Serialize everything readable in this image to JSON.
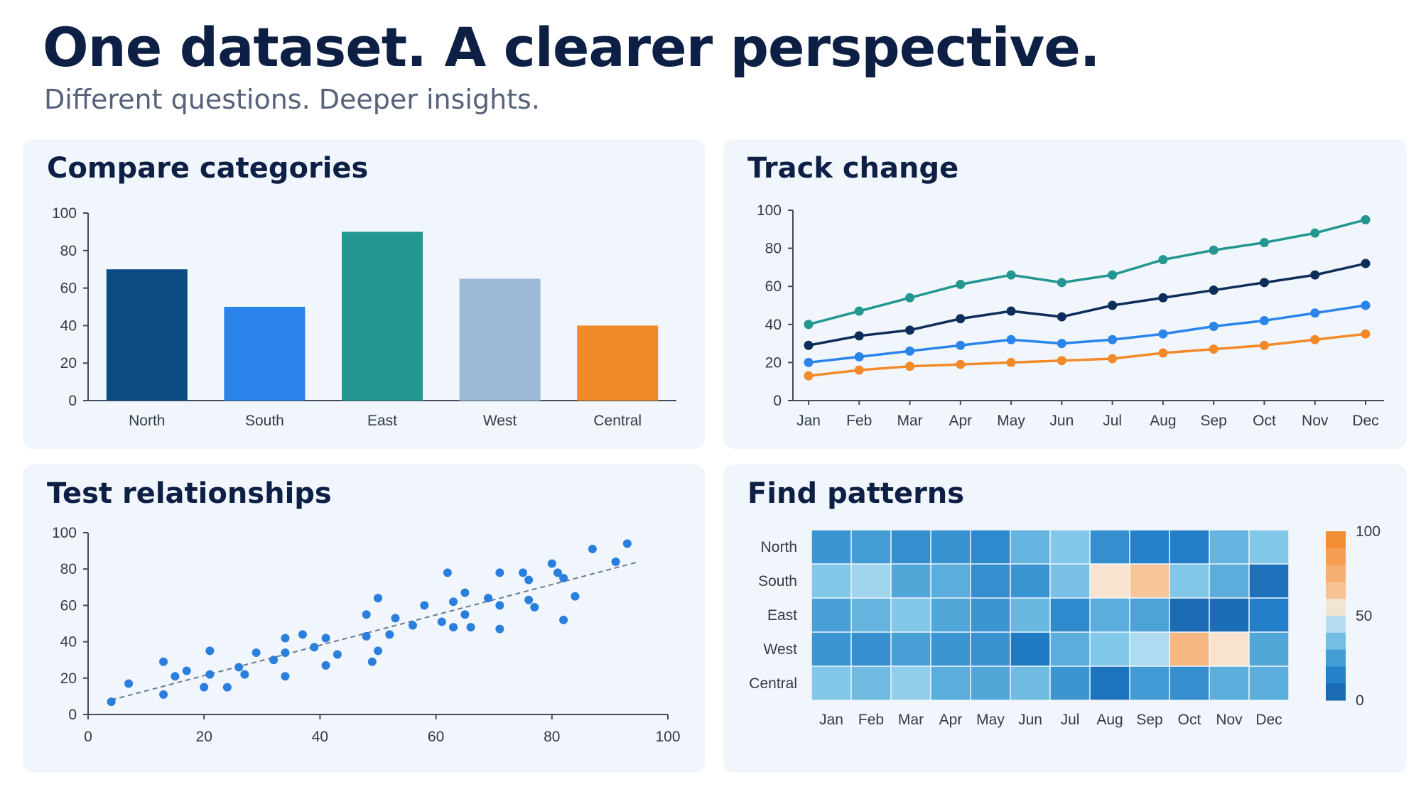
{
  "header": {
    "title": "One dataset. A clearer perspective.",
    "subtitle": "Different questions. Deeper insights."
  },
  "chart_data": [
    {
      "panel": "bar",
      "type": "bar",
      "title": "Compare categories",
      "categories": [
        "North",
        "South",
        "East",
        "West",
        "Central"
      ],
      "values": [
        70,
        50,
        90,
        65,
        40
      ],
      "colors": [
        "#0c4a83",
        "#2a84ea",
        "#22968f",
        "#9db9d8",
        "#f28a2a"
      ],
      "ylim": [
        0,
        100
      ],
      "yticks": [
        0,
        20,
        40,
        60,
        80,
        100
      ]
    },
    {
      "panel": "line",
      "type": "line",
      "title": "Track change",
      "categories": [
        "Jan",
        "Feb",
        "Mar",
        "Apr",
        "May",
        "Jun",
        "Jul",
        "Aug",
        "Sep",
        "Oct",
        "Nov",
        "Dec"
      ],
      "series": [
        {
          "color": "#22968f",
          "values": [
            40,
            47,
            54,
            61,
            66,
            62,
            66,
            74,
            79,
            83,
            88,
            95
          ]
        },
        {
          "color": "#0d2d5a",
          "values": [
            29,
            34,
            37,
            43,
            47,
            44,
            50,
            54,
            58,
            62,
            66,
            72
          ]
        },
        {
          "color": "#2a84ea",
          "values": [
            20,
            23,
            26,
            29,
            32,
            30,
            32,
            35,
            39,
            42,
            46,
            50
          ]
        },
        {
          "color": "#f28a2a",
          "values": [
            13,
            16,
            18,
            19,
            20,
            21,
            22,
            25,
            27,
            29,
            32,
            35
          ]
        }
      ],
      "ylim": [
        0,
        100
      ],
      "yticks": [
        0,
        20,
        40,
        60,
        80,
        100
      ]
    },
    {
      "panel": "scatter",
      "type": "scatter",
      "title": "Test relationships",
      "points": [
        [
          4,
          7
        ],
        [
          7,
          17
        ],
        [
          13,
          11
        ],
        [
          13,
          29
        ],
        [
          15,
          21
        ],
        [
          17,
          24
        ],
        [
          20,
          15
        ],
        [
          21,
          22
        ],
        [
          21,
          35
        ],
        [
          24,
          15
        ],
        [
          26,
          26
        ],
        [
          27,
          22
        ],
        [
          29,
          34
        ],
        [
          32,
          30
        ],
        [
          34,
          21
        ],
        [
          34,
          34
        ],
        [
          34,
          42
        ],
        [
          37,
          44
        ],
        [
          39,
          37
        ],
        [
          41,
          27
        ],
        [
          41,
          42
        ],
        [
          43,
          33
        ],
        [
          48,
          43
        ],
        [
          48,
          55
        ],
        [
          49,
          29
        ],
        [
          50,
          35
        ],
        [
          50,
          64
        ],
        [
          52,
          44
        ],
        [
          53,
          53
        ],
        [
          56,
          49
        ],
        [
          58,
          60
        ],
        [
          61,
          51
        ],
        [
          62,
          78
        ],
        [
          63,
          48
        ],
        [
          63,
          62
        ],
        [
          65,
          55
        ],
        [
          65,
          67
        ],
        [
          66,
          48
        ],
        [
          69,
          64
        ],
        [
          71,
          47
        ],
        [
          71,
          78
        ],
        [
          71,
          60
        ],
        [
          75,
          78
        ],
        [
          76,
          74
        ],
        [
          76,
          63
        ],
        [
          77,
          59
        ],
        [
          80,
          83
        ],
        [
          81,
          78
        ],
        [
          82,
          75
        ],
        [
          82,
          52
        ],
        [
          84,
          65
        ],
        [
          87,
          91
        ],
        [
          91,
          84
        ],
        [
          93,
          94
        ]
      ],
      "trendline": [
        [
          4,
          8
        ],
        [
          95,
          84
        ]
      ],
      "xlim": [
        0,
        100
      ],
      "ylim": [
        0,
        100
      ],
      "xticks": [
        0,
        20,
        40,
        60,
        80,
        100
      ],
      "yticks": [
        0,
        20,
        40,
        60,
        80,
        100
      ],
      "color": "#2a7fde"
    },
    {
      "panel": "heatmap",
      "type": "heatmap",
      "title": "Find patterns",
      "rows": [
        "North",
        "South",
        "East",
        "West",
        "Central"
      ],
      "columns": [
        "Jan",
        "Feb",
        "Mar",
        "Apr",
        "May",
        "Jun",
        "Jul",
        "Aug",
        "Sep",
        "Oct",
        "Nov",
        "Dec"
      ],
      "values": [
        [
          22,
          25,
          20,
          21,
          18,
          32,
          38,
          20,
          15,
          14,
          32,
          38
        ],
        [
          38,
          42,
          28,
          30,
          20,
          22,
          36,
          56,
          64,
          38,
          30,
          8
        ],
        [
          26,
          32,
          38,
          28,
          22,
          33,
          18,
          30,
          27,
          5,
          6,
          14
        ],
        [
          22,
          20,
          26,
          22,
          21,
          12,
          30,
          38,
          44,
          70,
          56,
          28
        ],
        [
          38,
          34,
          40,
          30,
          28,
          34,
          22,
          9,
          24,
          20,
          30,
          30
        ]
      ],
      "colorbar_ticks": [
        0,
        50,
        100
      ],
      "range": [
        0,
        100
      ]
    }
  ]
}
